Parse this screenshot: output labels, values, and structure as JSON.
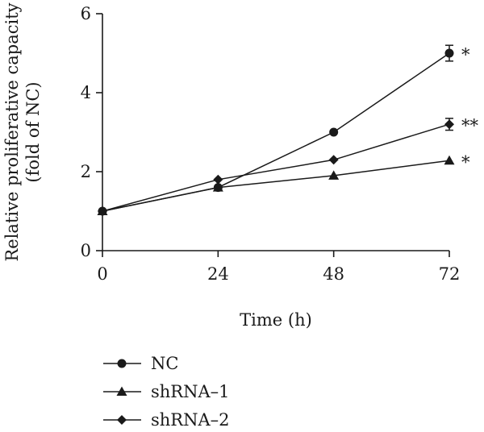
{
  "chart_data": {
    "type": "line",
    "xlabel": "Time (h)",
    "ylabel_lines": [
      "Relative proliferative capacity",
      "(fold of NC)"
    ],
    "xlim": [
      0,
      72
    ],
    "ylim": [
      0,
      6
    ],
    "xticks": [
      0,
      24,
      48,
      72
    ],
    "yticks": [
      0,
      2,
      4,
      6
    ],
    "x": [
      0,
      24,
      48,
      72
    ],
    "series": [
      {
        "name": "NC",
        "marker": "circle",
        "values": [
          1.0,
          1.6,
          3.0,
          5.0
        ],
        "errors": [
          0,
          0,
          0,
          0.2
        ],
        "significance": "*"
      },
      {
        "name": "shRNA–1",
        "marker": "triangle",
        "values": [
          1.0,
          1.6,
          1.9,
          2.28
        ],
        "errors": [
          0,
          0,
          0,
          0
        ],
        "significance": "*"
      },
      {
        "name": "shRNA–2",
        "marker": "diamond",
        "values": [
          1.0,
          1.8,
          2.3,
          3.2
        ],
        "errors": [
          0,
          0,
          0,
          0.15
        ],
        "significance": "**"
      }
    ],
    "grid": false,
    "legend_position": "bottom-left",
    "color": "#1a1a1a"
  }
}
